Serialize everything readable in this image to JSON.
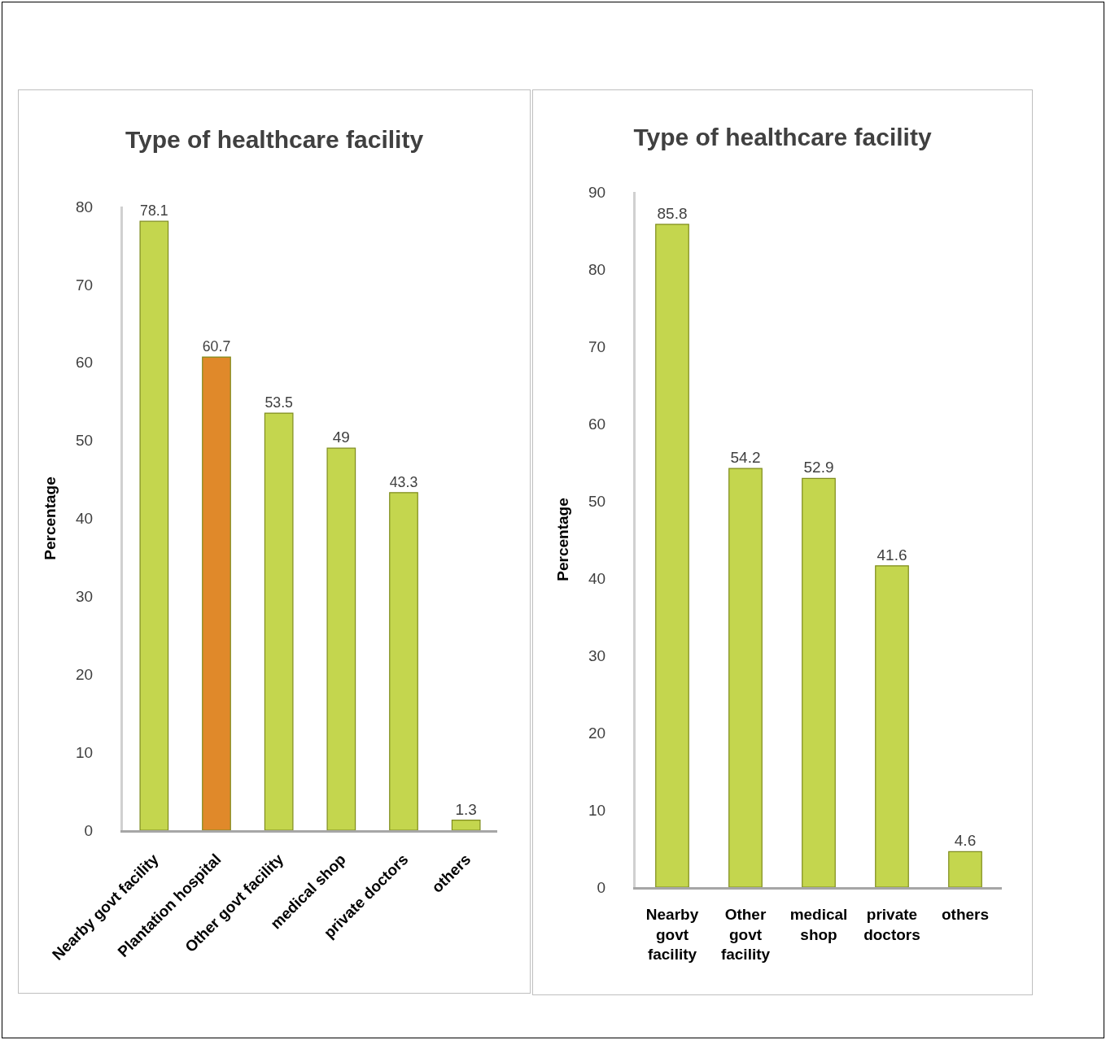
{
  "chart_data": [
    {
      "type": "bar",
      "title": "Type of healthcare facility",
      "ylabel": "Percentage",
      "categories": [
        "Nearby govt facility",
        "Plantation hospital",
        "Other govt facility",
        "medical shop",
        "private doctors",
        "others"
      ],
      "values": [
        78.1,
        60.7,
        53.5,
        49,
        43.3,
        1.3
      ],
      "colors": [
        "#c4d64e",
        "#e0892a",
        "#c4d64e",
        "#c4d64e",
        "#c4d64e",
        "#c4d64e"
      ],
      "ylim": [
        0,
        80
      ],
      "yticks": [
        0,
        10,
        20,
        30,
        40,
        50,
        60,
        70,
        80
      ],
      "data_labels": true
    },
    {
      "type": "bar",
      "title": "Type of healthcare facility",
      "ylabel": "Percentage",
      "categories": [
        "Nearby govt facility",
        "Other govt facility",
        "medical shop",
        "private doctors",
        "others"
      ],
      "values": [
        85.8,
        54.2,
        52.9,
        41.6,
        4.6
      ],
      "colors": [
        "#c4d64e",
        "#c4d64e",
        "#c4d64e",
        "#c4d64e",
        "#c4d64e"
      ],
      "ylim": [
        0,
        90
      ],
      "yticks": [
        0,
        10,
        20,
        30,
        40,
        50,
        60,
        70,
        80,
        90
      ],
      "data_labels": true
    }
  ]
}
